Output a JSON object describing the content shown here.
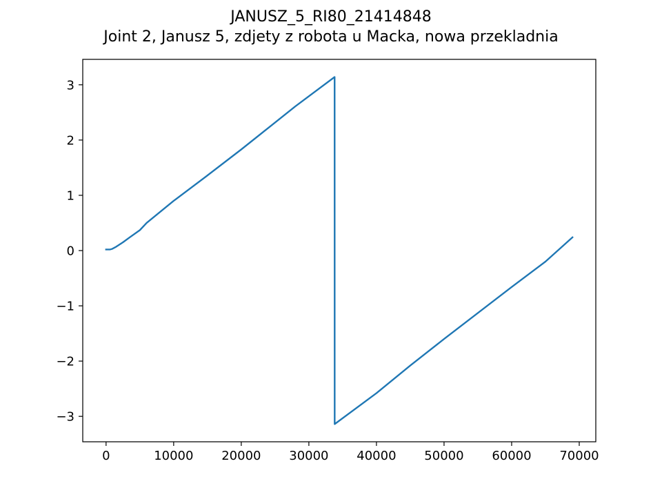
{
  "chart_data": {
    "type": "line",
    "title": "JANUSZ_5_RI80_21414848",
    "subtitle": "Joint 2, Janusz 5, zdjety z robota u Macka, nowa przekladnia",
    "xlabel": "",
    "ylabel": "",
    "xlim": [
      -3450,
      72450
    ],
    "ylim": [
      -3.46,
      3.46
    ],
    "xticks": [
      0,
      10000,
      20000,
      30000,
      40000,
      50000,
      60000,
      70000
    ],
    "xtick_labels": [
      "0",
      "10000",
      "20000",
      "30000",
      "40000",
      "50000",
      "60000",
      "70000"
    ],
    "yticks": [
      -3,
      -2,
      -1,
      0,
      1,
      2,
      3
    ],
    "ytick_labels": [
      "−3",
      "−2",
      "−1",
      "0",
      "1",
      "2",
      "3"
    ],
    "grid": false,
    "series": [
      {
        "color": "#1f77b4",
        "x": [
          0,
          600,
          900,
          1500,
          2500,
          3500,
          5000,
          6000,
          10000,
          15000,
          20000,
          24000,
          28000,
          33800,
          33810,
          33820,
          40000,
          45000,
          50000,
          55000,
          60000,
          65000,
          69000
        ],
        "y": [
          0.02,
          0.02,
          0.03,
          0.07,
          0.15,
          0.24,
          0.37,
          0.5,
          0.9,
          1.36,
          1.83,
          2.22,
          2.61,
          3.14,
          3.14,
          -3.14,
          -2.58,
          -2.08,
          -1.6,
          -1.13,
          -0.66,
          -0.2,
          0.24
        ]
      }
    ]
  }
}
